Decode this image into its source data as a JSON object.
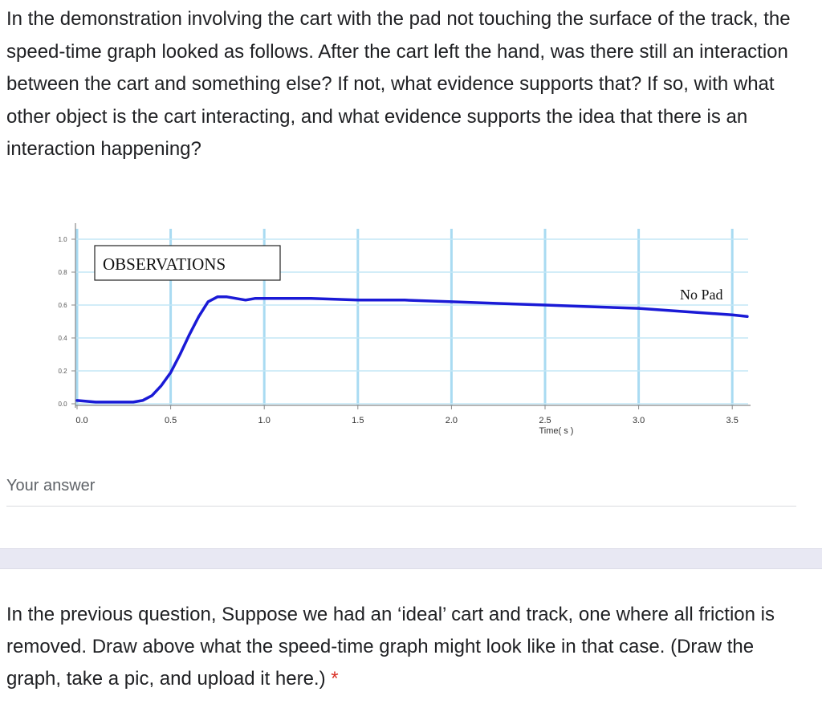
{
  "question1": {
    "text": "In the demonstration involving the cart with the pad not touching the surface of the track, the speed-time graph looked as follows. After the cart left the hand, was there still an interaction between the cart and something else? If not, what evidence supports that? If so, with what other object is the cart interacting, and what evidence supports the idea that there is an interaction happening?"
  },
  "answer": {
    "label": "Your answer"
  },
  "question2": {
    "text": "In the previous question, Suppose we had an ‘ideal’ cart and track, one where all friction is removed. Draw above what the speed-time graph might look like in that case. (Draw the graph, take a pic, and upload it here.)",
    "required_mark": "*"
  },
  "chart_data": {
    "type": "line",
    "title": "OBSERVATIONS",
    "annotation": "No Pad",
    "xlabel": "Time( s )",
    "ylabel": "",
    "xlim": [
      0,
      3.6
    ],
    "ylim": [
      0,
      1.0
    ],
    "x_ticks": [
      "0.0",
      "0.5",
      "1.0",
      "1.5",
      "2.0",
      "2.5",
      "3.0",
      "3.5"
    ],
    "y_ticks": [
      "0.0",
      "0.2",
      "0.4",
      "0.6",
      "0.8",
      "1.0"
    ],
    "grid": true,
    "series": [
      {
        "color": "#1a1ad6",
        "x": [
          0.0,
          0.1,
          0.2,
          0.3,
          0.35,
          0.4,
          0.45,
          0.5,
          0.55,
          0.6,
          0.65,
          0.7,
          0.75,
          0.8,
          0.85,
          0.9,
          0.95,
          1.0,
          1.25,
          1.5,
          1.75,
          2.0,
          2.25,
          2.5,
          2.75,
          3.0,
          3.25,
          3.5,
          3.58
        ],
        "y": [
          0.02,
          0.01,
          0.01,
          0.01,
          0.02,
          0.05,
          0.11,
          0.19,
          0.3,
          0.42,
          0.53,
          0.62,
          0.65,
          0.65,
          0.64,
          0.63,
          0.64,
          0.64,
          0.64,
          0.63,
          0.63,
          0.62,
          0.61,
          0.6,
          0.59,
          0.58,
          0.56,
          0.54,
          0.53
        ]
      }
    ]
  }
}
